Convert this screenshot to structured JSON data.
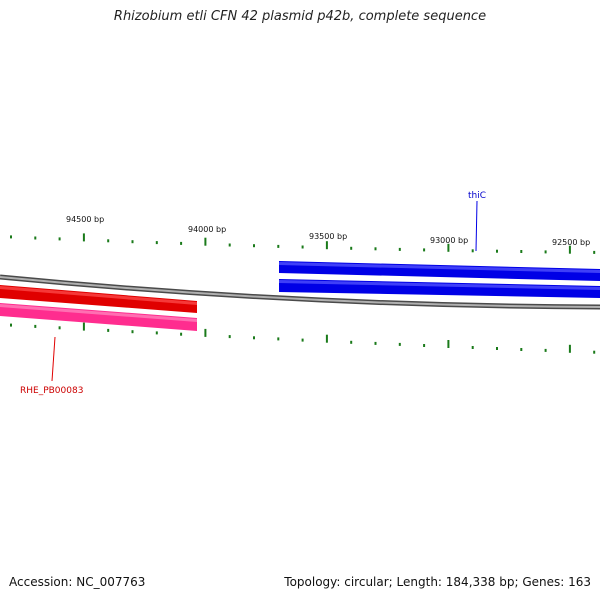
{
  "title": "Rhizobium etli CFN 42 plasmid p42b, complete sequence",
  "footer": {
    "accession": "Accession: NC_007763",
    "summary": "Topology: circular; Length: 184,338 bp; Genes: 163"
  },
  "scale_labels": [
    "94500 bp",
    "94000 bp",
    "93500 bp",
    "93000 bp",
    "92500 bp"
  ],
  "genes": [
    {
      "name": "thiC",
      "strand": "forward",
      "color": "#0000e6"
    },
    {
      "name": "RHE_PB00083",
      "strand": "reverse",
      "color": "#e00000"
    }
  ],
  "colors": {
    "backbone": "#808080",
    "forward_feature": "#0000e6",
    "reverse_feature": "#e00000",
    "reverse_cds": "#ff2d8f",
    "tick": "#1a7a1a"
  }
}
